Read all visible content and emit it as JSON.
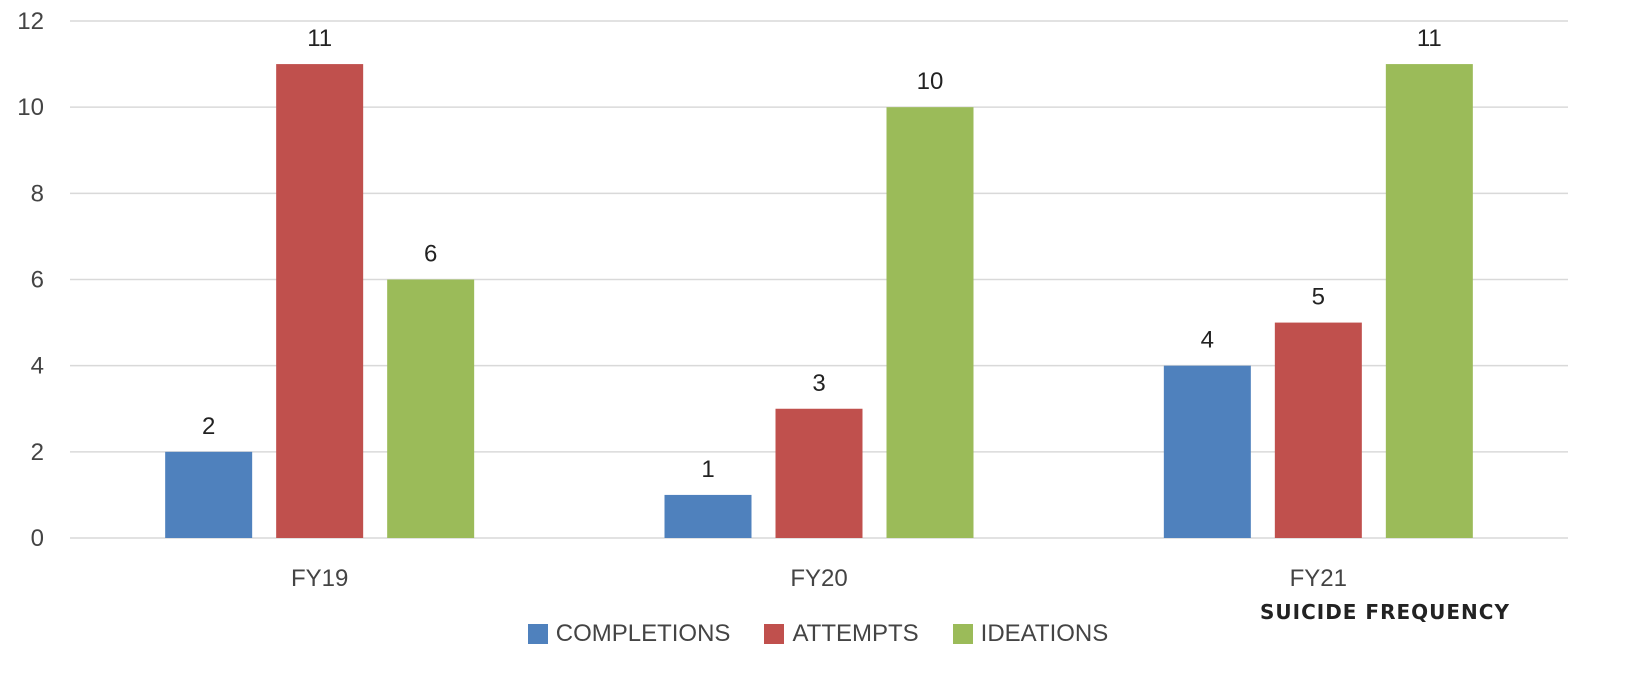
{
  "chart_data": {
    "type": "bar",
    "categories": [
      "FY19",
      "FY20",
      "FY21"
    ],
    "series": [
      {
        "name": "COMPLETIONS",
        "color": "#4f81bd",
        "values": [
          2,
          1,
          4
        ]
      },
      {
        "name": "ATTEMPTS",
        "color": "#c0504d",
        "values": [
          11,
          3,
          5
        ]
      },
      {
        "name": "IDEATIONS",
        "color": "#9bbb59",
        "values": [
          6,
          10,
          11
        ]
      }
    ],
    "ylim": [
      0,
      12
    ],
    "yticks": [
      "0",
      "2",
      "4",
      "6",
      "8",
      "10",
      "12"
    ],
    "grid": true,
    "legend_position": "bottom"
  },
  "watermark": "SUICIDE FREQUENCY"
}
